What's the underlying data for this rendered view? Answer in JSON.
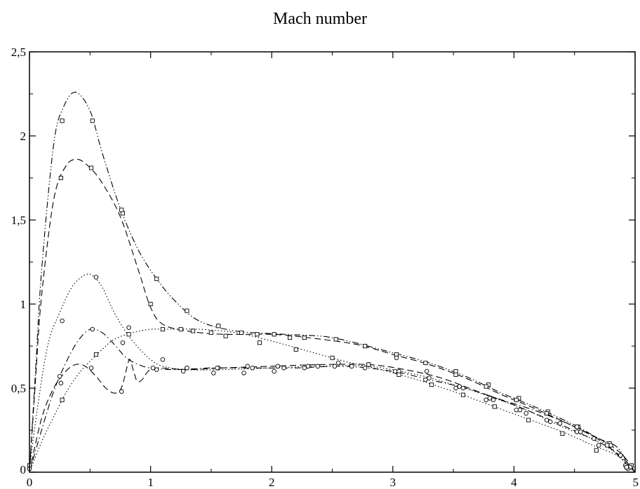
{
  "chart_data": {
    "type": "line",
    "title": "Mach number",
    "xlabel": "",
    "ylabel": "",
    "xlim": [
      0,
      5
    ],
    "ylim": [
      0,
      2.5
    ],
    "grid": false,
    "legend": "none",
    "x_ticks": [
      "0",
      "1",
      "2",
      "3",
      "4",
      "5"
    ],
    "y_ticks": [
      "0",
      "0,5",
      "1",
      "1,5",
      "2",
      "2,5"
    ],
    "series": [
      {
        "line_style": "dash-dot-dot",
        "marker": "square",
        "curve": [
          [
            0,
            0
          ],
          [
            0.05,
            0.6
          ],
          [
            0.1,
            1.2
          ],
          [
            0.2,
            1.95
          ],
          [
            0.28,
            2.17
          ],
          [
            0.38,
            2.26
          ],
          [
            0.5,
            2.15
          ],
          [
            0.6,
            1.9
          ],
          [
            0.75,
            1.57
          ],
          [
            0.9,
            1.32
          ],
          [
            1.05,
            1.15
          ],
          [
            1.2,
            1.02
          ],
          [
            1.4,
            0.9
          ],
          [
            1.7,
            0.84
          ],
          [
            2.1,
            0.82
          ],
          [
            2.5,
            0.8
          ],
          [
            3.0,
            0.71
          ],
          [
            3.3,
            0.65
          ],
          [
            3.6,
            0.57
          ],
          [
            3.9,
            0.47
          ],
          [
            4.2,
            0.38
          ],
          [
            4.5,
            0.28
          ],
          [
            4.7,
            0.2
          ],
          [
            4.85,
            0.15
          ],
          [
            4.95,
            0.04
          ],
          [
            5,
            0
          ]
        ],
        "markers": [
          [
            0.27,
            2.09
          ],
          [
            0.52,
            2.09
          ],
          [
            0.77,
            1.54
          ],
          [
            1.05,
            1.15
          ],
          [
            1.3,
            0.96
          ],
          [
            1.56,
            0.87
          ],
          [
            1.88,
            0.82
          ],
          [
            2.15,
            0.8
          ],
          [
            2.53,
            0.79
          ],
          [
            2.77,
            0.75
          ],
          [
            3.03,
            0.7
          ],
          [
            3.52,
            0.6
          ],
          [
            3.79,
            0.52
          ],
          [
            4.04,
            0.44
          ],
          [
            4.28,
            0.36
          ],
          [
            4.53,
            0.27
          ],
          [
            4.79,
            0.17
          ],
          [
            4.97,
            0.04
          ],
          [
            0,
            0.04
          ]
        ]
      },
      {
        "line_style": "dashed",
        "marker": "square",
        "curve": [
          [
            0,
            0
          ],
          [
            0.05,
            0.55
          ],
          [
            0.1,
            1.05
          ],
          [
            0.2,
            1.62
          ],
          [
            0.3,
            1.82
          ],
          [
            0.4,
            1.86
          ],
          [
            0.5,
            1.81
          ],
          [
            0.6,
            1.72
          ],
          [
            0.75,
            1.52
          ],
          [
            0.9,
            1.2
          ],
          [
            1.0,
            0.98
          ],
          [
            1.1,
            0.88
          ],
          [
            1.3,
            0.84
          ],
          [
            1.6,
            0.82
          ],
          [
            2.0,
            0.82
          ],
          [
            2.3,
            0.8
          ],
          [
            2.7,
            0.76
          ],
          [
            3.0,
            0.7
          ],
          [
            3.3,
            0.64
          ],
          [
            3.6,
            0.56
          ],
          [
            3.9,
            0.46
          ],
          [
            4.2,
            0.37
          ],
          [
            4.5,
            0.27
          ],
          [
            4.75,
            0.18
          ],
          [
            4.9,
            0.1
          ],
          [
            5,
            0
          ]
        ],
        "markers": [
          [
            0.26,
            1.75
          ],
          [
            0.51,
            1.81
          ],
          [
            0.76,
            1.56
          ],
          [
            1.0,
            1.0
          ],
          [
            1.25,
            0.85
          ],
          [
            1.5,
            0.83
          ],
          [
            1.75,
            0.83
          ],
          [
            2.02,
            0.82
          ],
          [
            2.27,
            0.8
          ],
          [
            2.77,
            0.75
          ],
          [
            3.27,
            0.65
          ],
          [
            3.52,
            0.58
          ],
          [
            3.77,
            0.51
          ],
          [
            4.02,
            0.43
          ],
          [
            4.27,
            0.35
          ],
          [
            4.52,
            0.27
          ],
          [
            4.77,
            0.16
          ],
          [
            4.96,
            0.03
          ]
        ]
      },
      {
        "line_style": "dotted",
        "marker": "circle",
        "curve": [
          [
            0,
            0
          ],
          [
            0.05,
            0.3
          ],
          [
            0.15,
            0.75
          ],
          [
            0.25,
            0.95
          ],
          [
            0.35,
            1.1
          ],
          [
            0.45,
            1.17
          ],
          [
            0.52,
            1.17
          ],
          [
            0.6,
            1.1
          ],
          [
            0.7,
            0.95
          ],
          [
            0.8,
            0.83
          ],
          [
            0.9,
            0.74
          ],
          [
            1.0,
            0.67
          ],
          [
            1.1,
            0.63
          ],
          [
            1.3,
            0.61
          ],
          [
            1.6,
            0.61
          ],
          [
            2.0,
            0.62
          ],
          [
            2.4,
            0.63
          ],
          [
            2.8,
            0.63
          ],
          [
            3.2,
            0.58
          ],
          [
            3.5,
            0.52
          ],
          [
            3.8,
            0.45
          ],
          [
            4.1,
            0.37
          ],
          [
            4.4,
            0.27
          ],
          [
            4.7,
            0.18
          ],
          [
            4.9,
            0.08
          ],
          [
            5,
            0
          ]
        ],
        "markers": [
          [
            0.27,
            0.9
          ],
          [
            0.55,
            1.16
          ],
          [
            0.82,
            0.86
          ],
          [
            1.1,
            0.67
          ],
          [
            1.3,
            0.62
          ],
          [
            1.56,
            0.62
          ],
          [
            1.84,
            0.62
          ],
          [
            2.1,
            0.62
          ],
          [
            2.38,
            0.63
          ],
          [
            2.66,
            0.63
          ],
          [
            3.03,
            0.68
          ],
          [
            3.28,
            0.6
          ],
          [
            3.58,
            0.5
          ],
          [
            3.83,
            0.43
          ],
          [
            4.1,
            0.35
          ],
          [
            4.38,
            0.29
          ],
          [
            4.66,
            0.2
          ],
          [
            4.88,
            0.1
          ],
          [
            0,
            0.02
          ]
        ]
      },
      {
        "line_style": "dash-dot",
        "marker": "circle",
        "curve": [
          [
            0,
            0
          ],
          [
            0.1,
            0.25
          ],
          [
            0.2,
            0.48
          ],
          [
            0.3,
            0.65
          ],
          [
            0.4,
            0.78
          ],
          [
            0.5,
            0.85
          ],
          [
            0.6,
            0.83
          ],
          [
            0.7,
            0.76
          ],
          [
            0.8,
            0.68
          ],
          [
            0.9,
            0.64
          ],
          [
            1.0,
            0.62
          ],
          [
            1.2,
            0.61
          ],
          [
            1.5,
            0.62
          ],
          [
            1.8,
            0.62
          ],
          [
            2.2,
            0.62
          ],
          [
            2.6,
            0.63
          ],
          [
            3.0,
            0.6
          ],
          [
            3.3,
            0.55
          ],
          [
            3.6,
            0.5
          ],
          [
            3.9,
            0.43
          ],
          [
            4.2,
            0.36
          ],
          [
            4.5,
            0.27
          ],
          [
            4.75,
            0.17
          ],
          [
            4.9,
            0.07
          ],
          [
            5,
            0
          ]
        ],
        "markers": [
          [
            0.25,
            0.57
          ],
          [
            0.52,
            0.85
          ],
          [
            0.77,
            0.77
          ],
          [
            1.02,
            0.62
          ],
          [
            1.27,
            0.6
          ],
          [
            1.52,
            0.59
          ],
          [
            1.77,
            0.59
          ],
          [
            2.02,
            0.6
          ],
          [
            2.27,
            0.62
          ],
          [
            2.52,
            0.63
          ],
          [
            2.77,
            0.62
          ],
          [
            3.02,
            0.6
          ],
          [
            3.27,
            0.55
          ],
          [
            3.52,
            0.5
          ],
          [
            3.77,
            0.43
          ],
          [
            4.02,
            0.37
          ],
          [
            4.27,
            0.31
          ],
          [
            4.52,
            0.24
          ],
          [
            4.7,
            0.16
          ],
          [
            4.94,
            0.02
          ]
        ]
      },
      {
        "line_style": "dashed",
        "marker": "circle",
        "curve": [
          [
            0,
            0
          ],
          [
            0.1,
            0.32
          ],
          [
            0.2,
            0.5
          ],
          [
            0.3,
            0.6
          ],
          [
            0.38,
            0.64
          ],
          [
            0.46,
            0.63
          ],
          [
            0.55,
            0.57
          ],
          [
            0.63,
            0.5
          ],
          [
            0.7,
            0.47
          ],
          [
            0.75,
            0.49
          ],
          [
            0.78,
            0.55
          ],
          [
            0.81,
            0.64
          ],
          [
            0.83,
            0.67
          ],
          [
            0.86,
            0.6
          ],
          [
            0.89,
            0.54
          ],
          [
            0.93,
            0.55
          ],
          [
            0.98,
            0.6
          ],
          [
            1.05,
            0.62
          ],
          [
            1.3,
            0.61
          ],
          [
            1.6,
            0.62
          ],
          [
            2.0,
            0.63
          ],
          [
            2.4,
            0.64
          ],
          [
            2.8,
            0.64
          ],
          [
            3.1,
            0.61
          ],
          [
            3.4,
            0.56
          ],
          [
            3.7,
            0.48
          ],
          [
            4.0,
            0.4
          ],
          [
            4.3,
            0.31
          ],
          [
            4.55,
            0.23
          ],
          [
            4.8,
            0.14
          ],
          [
            4.93,
            0.06
          ],
          [
            5,
            0
          ]
        ],
        "markers": [
          [
            0.26,
            0.53
          ],
          [
            0.51,
            0.62
          ],
          [
            0.76,
            0.48
          ],
          [
            1.05,
            0.61
          ],
          [
            1.3,
            0.62
          ],
          [
            1.55,
            0.62
          ],
          [
            1.8,
            0.63
          ],
          [
            2.05,
            0.63
          ],
          [
            2.3,
            0.63
          ],
          [
            2.55,
            0.65
          ],
          [
            2.8,
            0.64
          ],
          [
            3.05,
            0.6
          ],
          [
            3.3,
            0.56
          ],
          [
            3.55,
            0.51
          ],
          [
            3.8,
            0.44
          ],
          [
            4.05,
            0.37
          ],
          [
            4.3,
            0.3
          ],
          [
            4.55,
            0.24
          ],
          [
            4.8,
            0.16
          ],
          [
            4.92,
            0.04
          ]
        ]
      },
      {
        "line_style": "dotted",
        "marker": "square",
        "curve": [
          [
            0,
            0
          ],
          [
            0.1,
            0.18
          ],
          [
            0.2,
            0.33
          ],
          [
            0.3,
            0.47
          ],
          [
            0.4,
            0.58
          ],
          [
            0.5,
            0.66
          ],
          [
            0.6,
            0.73
          ],
          [
            0.7,
            0.79
          ],
          [
            0.85,
            0.83
          ],
          [
            1.0,
            0.85
          ],
          [
            1.15,
            0.85
          ],
          [
            1.4,
            0.85
          ],
          [
            1.7,
            0.83
          ],
          [
            2.0,
            0.78
          ],
          [
            2.3,
            0.72
          ],
          [
            2.6,
            0.66
          ],
          [
            2.9,
            0.61
          ],
          [
            3.2,
            0.55
          ],
          [
            3.5,
            0.48
          ],
          [
            3.8,
            0.4
          ],
          [
            4.1,
            0.32
          ],
          [
            4.4,
            0.24
          ],
          [
            4.65,
            0.16
          ],
          [
            4.85,
            0.1
          ],
          [
            4.95,
            0.03
          ],
          [
            5,
            0
          ]
        ],
        "markers": [
          [
            0.27,
            0.43
          ],
          [
            0.55,
            0.7
          ],
          [
            0.82,
            0.82
          ],
          [
            1.1,
            0.85
          ],
          [
            1.35,
            0.84
          ],
          [
            1.62,
            0.81
          ],
          [
            1.9,
            0.77
          ],
          [
            2.2,
            0.73
          ],
          [
            2.5,
            0.68
          ],
          [
            2.8,
            0.64
          ],
          [
            3.05,
            0.58
          ],
          [
            3.32,
            0.52
          ],
          [
            3.58,
            0.46
          ],
          [
            3.84,
            0.39
          ],
          [
            4.12,
            0.31
          ],
          [
            4.4,
            0.23
          ],
          [
            4.68,
            0.13
          ],
          [
            4.93,
            0.03
          ]
        ]
      }
    ]
  }
}
